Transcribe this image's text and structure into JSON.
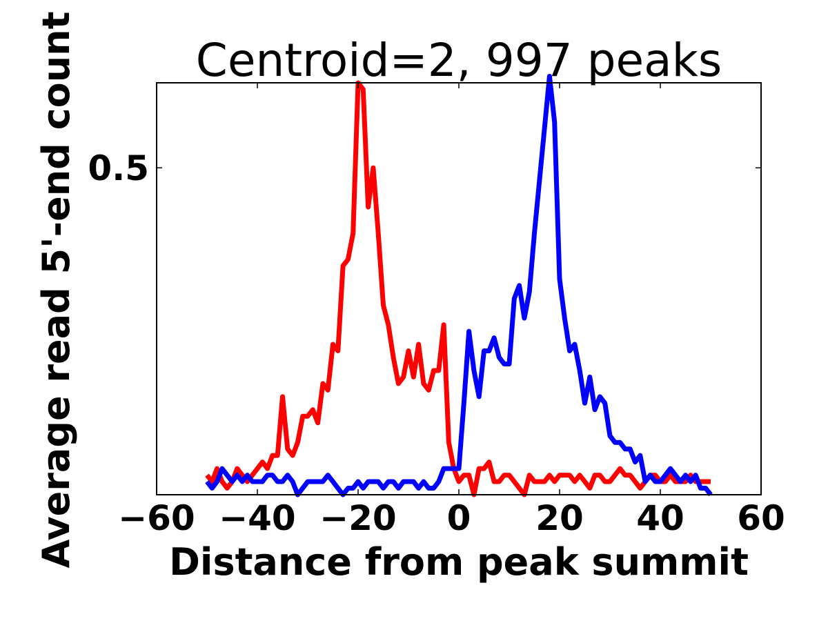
{
  "chart_data": {
    "type": "line",
    "title": "Centroid=2, 997 peaks",
    "xlabel": "Distance from peak summit",
    "ylabel": "Average read 5'-end count",
    "xlim": [
      -60,
      60
    ],
    "ylim": [
      0,
      0.63
    ],
    "xticks": [
      -60,
      -40,
      -20,
      0,
      20,
      40,
      60
    ],
    "xtick_labels": [
      "−60",
      "−40",
      "−20",
      "0",
      "20",
      "40",
      "60"
    ],
    "yticks": [
      0.5
    ],
    "ytick_labels": [
      "0.5"
    ],
    "grid": false,
    "legend": "none",
    "series": [
      {
        "color": "#ff0000",
        "x": [
          -50,
          -49,
          -48,
          -47,
          -46,
          -45,
          -44,
          -43,
          -42,
          -41,
          -40,
          -39,
          -38,
          -37,
          -36,
          -35,
          -34,
          -33,
          -32,
          -31,
          -30,
          -29,
          -28,
          -27,
          -26,
          -25,
          -24,
          -23,
          -22,
          -21,
          -20,
          -19,
          -18,
          -17,
          -16,
          -15,
          -14,
          -13,
          -12,
          -11,
          -10,
          -9,
          -8,
          -7,
          -6,
          -5,
          -4,
          -3,
          -2,
          -1,
          0,
          1,
          2,
          3,
          4,
          5,
          6,
          7,
          8,
          9,
          10,
          11,
          12,
          13,
          14,
          15,
          16,
          17,
          18,
          19,
          20,
          21,
          22,
          23,
          24,
          25,
          26,
          27,
          28,
          29,
          30,
          31,
          32,
          33,
          34,
          35,
          36,
          37,
          38,
          39,
          40,
          41,
          42,
          43,
          44,
          45,
          46,
          47,
          48,
          49,
          50
        ],
        "values": [
          0.03,
          0.02,
          0.04,
          0.02,
          0.01,
          0.02,
          0.04,
          0.03,
          0.02,
          0.03,
          0.04,
          0.05,
          0.04,
          0.06,
          0.06,
          0.15,
          0.07,
          0.06,
          0.08,
          0.12,
          0.12,
          0.13,
          0.11,
          0.17,
          0.16,
          0.23,
          0.22,
          0.35,
          0.36,
          0.4,
          0.63,
          0.62,
          0.44,
          0.5,
          0.4,
          0.29,
          0.26,
          0.21,
          0.17,
          0.18,
          0.22,
          0.18,
          0.23,
          0.17,
          0.16,
          0.19,
          0.19,
          0.26,
          0.08,
          0.04,
          0.02,
          0.03,
          0.03,
          0.0,
          0.04,
          0.04,
          0.05,
          0.02,
          0.02,
          0.03,
          0.03,
          0.02,
          0.01,
          0.0,
          0.03,
          0.02,
          0.02,
          0.02,
          0.03,
          0.02,
          0.03,
          0.03,
          0.03,
          0.02,
          0.03,
          0.02,
          0.01,
          0.03,
          0.03,
          0.02,
          0.02,
          0.03,
          0.04,
          0.03,
          0.03,
          0.02,
          0.01,
          0.02,
          0.03,
          0.03,
          0.02,
          0.02,
          0.03,
          0.02,
          0.02,
          0.02,
          0.03,
          0.02,
          0.02,
          0.02,
          0.02
        ]
      },
      {
        "color": "#0000ff",
        "x": [
          -50,
          -49,
          -48,
          -47,
          -46,
          -45,
          -44,
          -43,
          -42,
          -41,
          -40,
          -39,
          -38,
          -37,
          -36,
          -35,
          -34,
          -33,
          -32,
          -31,
          -30,
          -29,
          -28,
          -27,
          -26,
          -25,
          -24,
          -23,
          -22,
          -21,
          -20,
          -19,
          -18,
          -17,
          -16,
          -15,
          -14,
          -13,
          -12,
          -11,
          -10,
          -9,
          -8,
          -7,
          -6,
          -5,
          -4,
          -3,
          -2,
          -1,
          0,
          1,
          2,
          3,
          4,
          5,
          6,
          7,
          8,
          9,
          10,
          11,
          12,
          13,
          14,
          15,
          16,
          17,
          18,
          19,
          20,
          21,
          22,
          23,
          24,
          25,
          26,
          27,
          28,
          29,
          30,
          31,
          32,
          33,
          34,
          35,
          36,
          37,
          38,
          39,
          40,
          41,
          42,
          43,
          44,
          45,
          46,
          47,
          48,
          49,
          50
        ],
        "values": [
          0.02,
          0.01,
          0.02,
          0.04,
          0.03,
          0.02,
          0.03,
          0.02,
          0.03,
          0.02,
          0.02,
          0.02,
          0.03,
          0.03,
          0.02,
          0.02,
          0.03,
          0.02,
          0.0,
          0.01,
          0.02,
          0.02,
          0.02,
          0.02,
          0.03,
          0.02,
          0.01,
          0.0,
          0.01,
          0.01,
          0.02,
          0.01,
          0.02,
          0.02,
          0.02,
          0.01,
          0.02,
          0.02,
          0.01,
          0.02,
          0.02,
          0.02,
          0.01,
          0.02,
          0.01,
          0.01,
          0.02,
          0.04,
          0.04,
          0.04,
          0.04,
          0.14,
          0.25,
          0.19,
          0.15,
          0.22,
          0.22,
          0.24,
          0.21,
          0.2,
          0.2,
          0.3,
          0.32,
          0.27,
          0.31,
          0.4,
          0.48,
          0.56,
          0.64,
          0.57,
          0.33,
          0.27,
          0.22,
          0.23,
          0.19,
          0.14,
          0.18,
          0.13,
          0.15,
          0.14,
          0.09,
          0.08,
          0.08,
          0.07,
          0.07,
          0.05,
          0.06,
          0.02,
          0.03,
          0.02,
          0.02,
          0.03,
          0.04,
          0.03,
          0.02,
          0.03,
          0.02,
          0.03,
          0.01,
          0.01,
          0.0
        ]
      }
    ]
  }
}
